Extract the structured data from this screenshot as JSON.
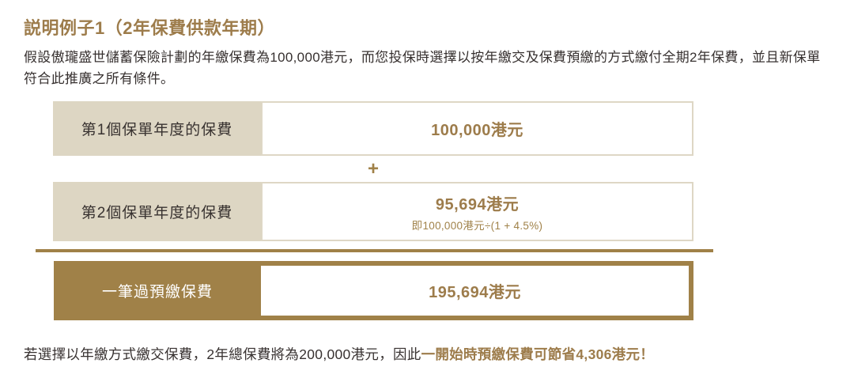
{
  "title": "説明例子1（2年保費供款年期）",
  "intro": "假設傲瓏盛世儲蓄保險計劃的年繳保費為100,000港元，而您投保時選擇以按年繳交及保費預繳的方式繳付全期2年保費，並且新保單符合此推廣之所有條件。",
  "table": {
    "operator": "+",
    "rows": [
      {
        "label": "第1個保單年度的保費",
        "value": "100,000港元"
      },
      {
        "label": "第2個保單年度的保費",
        "value": "95,694港元",
        "formula": "即100,000港元÷(1 + 4.5%)"
      },
      {
        "label": "一筆過預繳保費",
        "value": "195,694港元"
      }
    ]
  },
  "footer": {
    "text": "若選擇以年繳方式繳交保費，2年總保費將為200,000港元，因此",
    "highlight": "一開始時預繳保費可節省4,306港元！"
  },
  "colors": {
    "gold_text": "#9d7c4b",
    "gold_fill": "#a08148",
    "label_beige": "#ddd6c3",
    "box_border": "#ded7c5",
    "body_text": "#373130"
  }
}
